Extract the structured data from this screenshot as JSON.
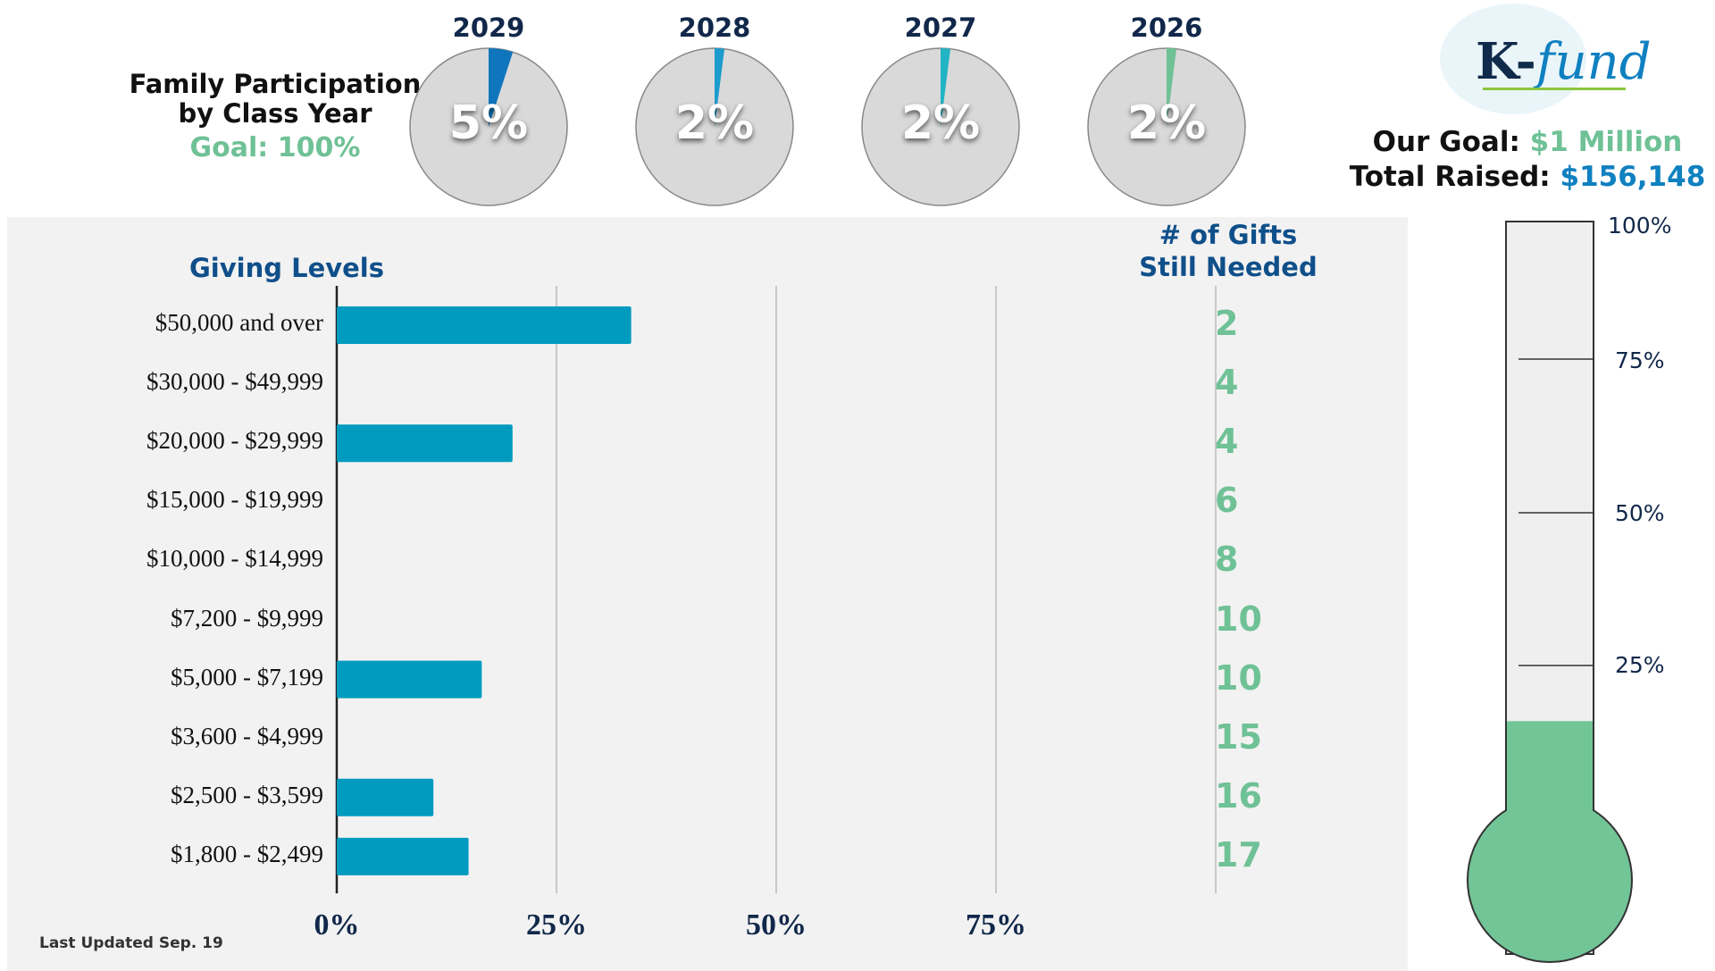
{
  "header": {
    "title_line1": "Family Participation",
    "title_line2": "by Class Year",
    "goal": "Goal: 100%"
  },
  "participation": [
    {
      "year": "2029",
      "value": 5,
      "label": "5%",
      "color": "#0f75bc"
    },
    {
      "year": "2028",
      "value": 2,
      "label": "2%",
      "color": "#1b9ccc"
    },
    {
      "year": "2027",
      "value": 2,
      "label": "2%",
      "color": "#22b3c4"
    },
    {
      "year": "2026",
      "value": 2,
      "label": "2%",
      "color": "#6fc196"
    }
  ],
  "logo": {
    "k": "K-",
    "fund": "fund"
  },
  "goal": {
    "goal_prefix": "Our Goal: ",
    "goal_value": "$1 Million",
    "raised_prefix": "Total Raised: ",
    "raised_value": "$156,148"
  },
  "thermometer": {
    "percent": 15.6,
    "ticks": [
      "100%",
      "75%",
      "50%",
      "25%"
    ],
    "fill_color": "#72c597"
  },
  "giving": {
    "title": "Giving Levels",
    "needed_title_line1": "# of Gifts",
    "needed_title_line2": "Still Needed",
    "updated": "Last Updated Sep. 19"
  },
  "chart_data": {
    "type": "bar",
    "orientation": "horizontal",
    "title": "Giving Levels",
    "categories": [
      "$50,000 and over",
      "$30,000 - $49,999",
      "$20,000 - $29,999",
      "$15,000 - $19,999",
      "$10,000 - $14,999",
      "$7,200 - $9,999",
      "$5,000 - $7,199",
      "$3,600 - $4,999",
      "$2,500 - $3,599",
      "$1,800 - $2,499"
    ],
    "values": [
      33.5,
      0,
      20,
      0,
      0,
      0,
      16.5,
      0,
      11,
      15
    ],
    "gifts_needed": [
      "2",
      "4",
      "4",
      "6",
      "8",
      "10",
      "10",
      "15",
      "16",
      "17"
    ],
    "xlim": [
      0,
      100
    ],
    "xticks": [
      "0%",
      "25%",
      "50%",
      "75%"
    ],
    "bar_color": "#009bbf",
    "grid": true
  }
}
